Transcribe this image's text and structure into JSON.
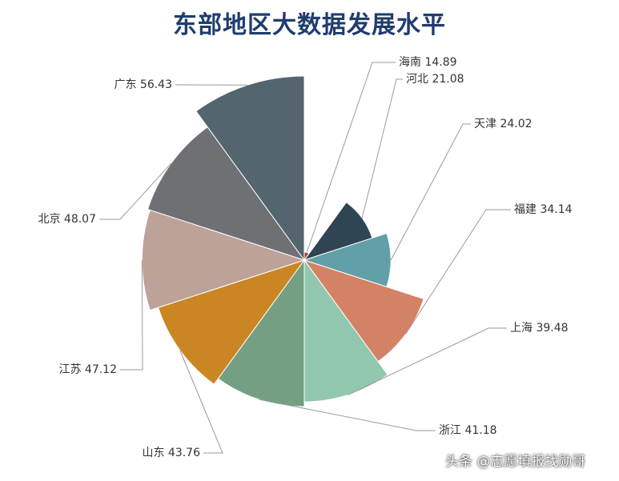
{
  "chart_data": {
    "type": "pie",
    "variant": "rose",
    "title": "东部地区大数据发展水平",
    "categories": [
      "海南",
      "河北",
      "天津",
      "福建",
      "上海",
      "浙江",
      "山东",
      "江苏",
      "北京",
      "广东"
    ],
    "values": [
      14.89,
      21.08,
      24.02,
      34.14,
      39.48,
      41.18,
      43.76,
      47.12,
      48.07,
      56.43
    ],
    "colors": [
      "#c23531",
      "#2f4554",
      "#61a0a8",
      "#d48265",
      "#91c7ae",
      "#749f83",
      "#ca8622",
      "#bda29a",
      "#6e7074",
      "#546570"
    ],
    "labels": [
      "海南 14.89",
      "河北 21.08",
      "天津 24.02",
      "福建 34.14",
      "上海 39.48",
      "浙江 41.18",
      "山东 43.76",
      "江苏 47.12",
      "北京 48.07",
      "广东 56.43"
    ],
    "legend": "none"
  },
  "watermark": "头条 @志愿填报找勋哥"
}
